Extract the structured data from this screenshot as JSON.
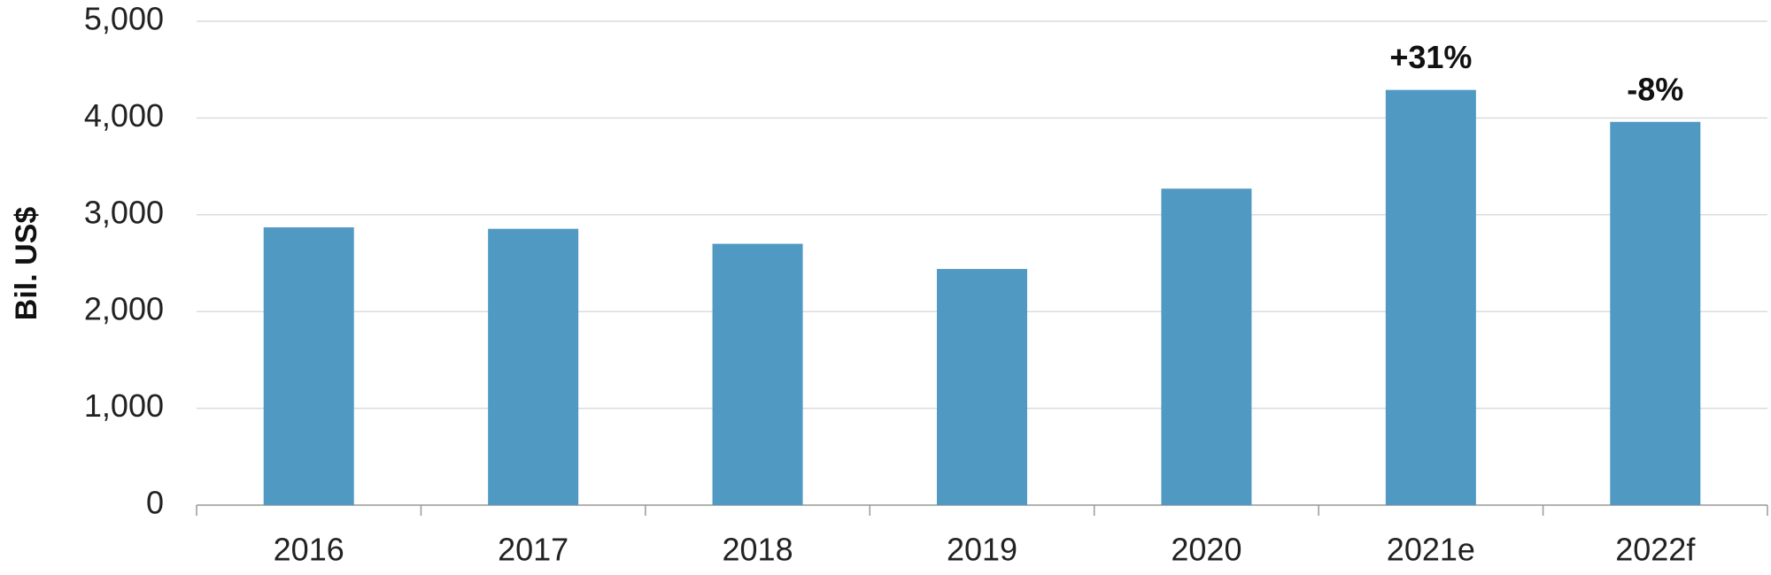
{
  "chart_data": {
    "type": "bar",
    "y_label": "Bil. US$",
    "categories": [
      "2016",
      "2017",
      "2018",
      "2019",
      "2020",
      "2021e",
      "2022f"
    ],
    "values": [
      2870,
      2855,
      2700,
      2440,
      3270,
      4290,
      3960
    ],
    "color": "#4f99c3",
    "ylim": [
      0,
      5000
    ],
    "yticks": [
      0,
      {
        "value": 1000,
        "label": "1,000"
      },
      {
        "value": 2000,
        "label": "2,000"
      },
      {
        "value": 3000,
        "label": "3,000"
      },
      {
        "value": 4000,
        "label": "4,000"
      },
      {
        "value": 5000,
        "label": "5,000"
      }
    ],
    "grid": true,
    "annotations": [
      {
        "text": "+31%",
        "category": "2021e"
      },
      {
        "text": "-8%",
        "category": "2022f"
      }
    ]
  }
}
